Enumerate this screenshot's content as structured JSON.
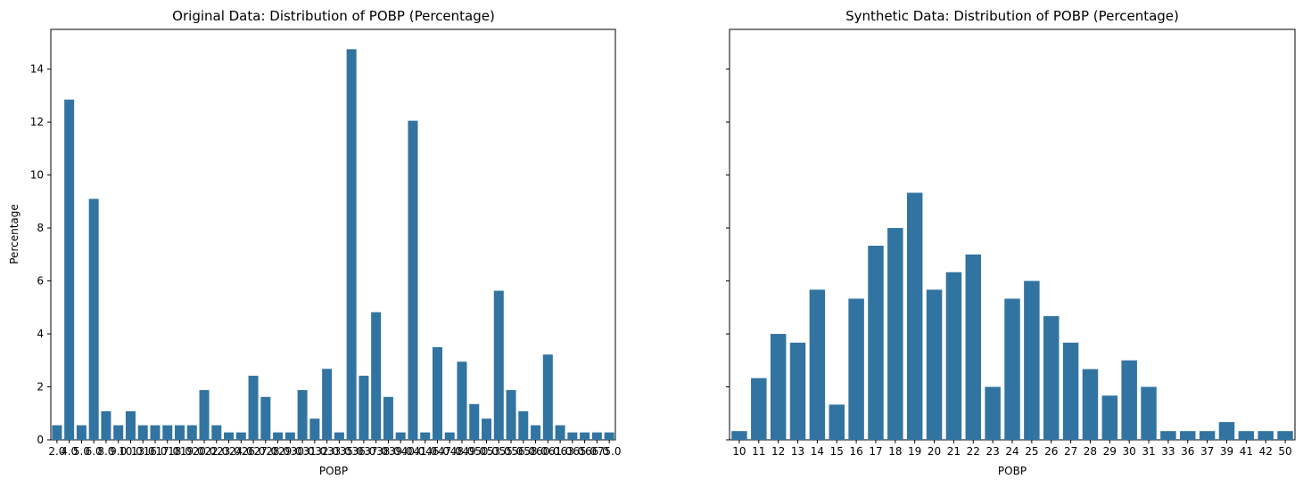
{
  "chart_data": [
    {
      "type": "bar",
      "title": "Original Data: Distribution of POBP (Percentage)",
      "xlabel": "POBP",
      "ylabel": "Percentage",
      "ylim": [
        0,
        15.5
      ],
      "yticks": [
        "0",
        "2",
        "4",
        "6",
        "8",
        "10",
        "12",
        "14"
      ],
      "grid": false,
      "legend": "none",
      "bar_color": "#3274a1",
      "categories": [
        "2.0",
        "4.0",
        "5.0",
        "6.0",
        "8.0",
        "9.0",
        "10.0",
        "13.0",
        "16.0",
        "17.0",
        "18.0",
        "19.0",
        "20.0",
        "22.0",
        "23.0",
        "24.0",
        "26.0",
        "27.0",
        "28.0",
        "29.0",
        "30.0",
        "31.0",
        "32.0",
        "33.0",
        "35.0",
        "36.0",
        "37.0",
        "38.0",
        "39.0",
        "40.0",
        "41.0",
        "46.0",
        "47.0",
        "48.0",
        "49.0",
        "50.0",
        "53.0",
        "55.0",
        "56.0",
        "58.0",
        "60.0",
        "61.0",
        "63.0",
        "65.0",
        "66.0",
        "75.0"
      ],
      "values": [
        0.55,
        12.85,
        0.55,
        9.1,
        1.08,
        0.55,
        1.08,
        0.55,
        0.55,
        0.55,
        0.55,
        0.55,
        1.88,
        0.55,
        0.28,
        0.28,
        2.42,
        1.62,
        0.28,
        0.28,
        1.88,
        0.8,
        2.68,
        0.28,
        14.75,
        2.42,
        4.82,
        1.62,
        0.28,
        12.05,
        0.28,
        3.5,
        0.28,
        2.95,
        1.35,
        0.8,
        5.63,
        1.88,
        1.08,
        0.55,
        3.22,
        0.55,
        0.28,
        0.28,
        0.28,
        0.28
      ]
    },
    {
      "type": "bar",
      "title": "Synthetic Data: Distribution of POBP (Percentage)",
      "xlabel": "POBP",
      "ylabel": "",
      "ylim": [
        0,
        15.5
      ],
      "grid": false,
      "legend": "none",
      "shared_y": true,
      "bar_color": "#3274a1",
      "categories": [
        "10",
        "11",
        "12",
        "13",
        "14",
        "15",
        "16",
        "17",
        "18",
        "19",
        "20",
        "21",
        "22",
        "23",
        "24",
        "25",
        "26",
        "27",
        "28",
        "29",
        "30",
        "31",
        "33",
        "36",
        "37",
        "39",
        "41",
        "42",
        "50"
      ],
      "values": [
        0.33,
        2.33,
        4.0,
        3.67,
        5.67,
        1.33,
        5.33,
        7.33,
        8.0,
        9.33,
        5.67,
        6.33,
        7.0,
        2.0,
        5.33,
        6.0,
        4.67,
        3.67,
        2.67,
        1.67,
        3.0,
        2.0,
        0.33,
        0.33,
        0.33,
        0.67,
        0.33,
        0.33,
        0.33
      ]
    }
  ]
}
